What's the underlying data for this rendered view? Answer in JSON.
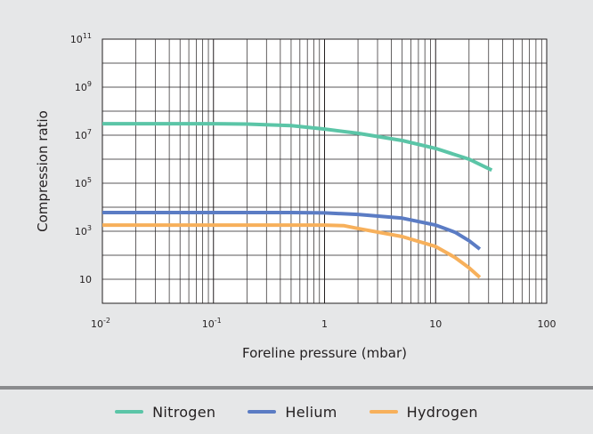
{
  "chart_data": {
    "type": "line",
    "xlabel": "Foreline pressure (mbar)",
    "ylabel": "Compression ratio",
    "x_scale": "log",
    "y_scale": "log",
    "xlim": [
      0.01,
      100
    ],
    "ylim": [
      1,
      100000000000
    ],
    "grid": true,
    "legend_position": "bottom",
    "x_ticks": [
      {
        "value": 0.01,
        "base": "10",
        "exp": "-2"
      },
      {
        "value": 0.1,
        "base": "10",
        "exp": "-1"
      },
      {
        "value": 1,
        "base": "1",
        "exp": ""
      },
      {
        "value": 10,
        "base": "10",
        "exp": ""
      },
      {
        "value": 100,
        "base": "100",
        "exp": ""
      }
    ],
    "y_ticks": [
      {
        "value": 10,
        "base": "10",
        "exp": ""
      },
      {
        "value": 1000,
        "base": "10",
        "exp": "3"
      },
      {
        "value": 100000,
        "base": "10",
        "exp": "5"
      },
      {
        "value": 10000000,
        "base": "10",
        "exp": "7"
      },
      {
        "value": 1000000000,
        "base": "10",
        "exp": "9"
      },
      {
        "value": 100000000000,
        "base": "10",
        "exp": "11"
      }
    ],
    "series": [
      {
        "name": "Nitrogen",
        "color": "#5bc5a7",
        "x": [
          0.01,
          0.1,
          0.2,
          0.5,
          1,
          2,
          5,
          10,
          20,
          32
        ],
        "y": [
          30000000,
          30000000,
          29000000,
          25000000,
          18000000,
          12000000,
          6000000,
          2800000,
          1000000,
          350000
        ]
      },
      {
        "name": "Helium",
        "color": "#5b7cc4",
        "x": [
          0.01,
          0.1,
          0.5,
          1,
          2,
          5,
          10,
          15,
          20,
          25
        ],
        "y": [
          6000,
          6000,
          6000,
          5800,
          5000,
          3500,
          1800,
          900,
          400,
          180
        ]
      },
      {
        "name": "Hydrogen",
        "color": "#f7b05b",
        "x": [
          0.01,
          0.1,
          0.5,
          1,
          1.5,
          2,
          5,
          10,
          15,
          20,
          25
        ],
        "y": [
          1800,
          1800,
          1800,
          1800,
          1700,
          1300,
          600,
          230,
          80,
          30,
          12
        ]
      }
    ]
  }
}
